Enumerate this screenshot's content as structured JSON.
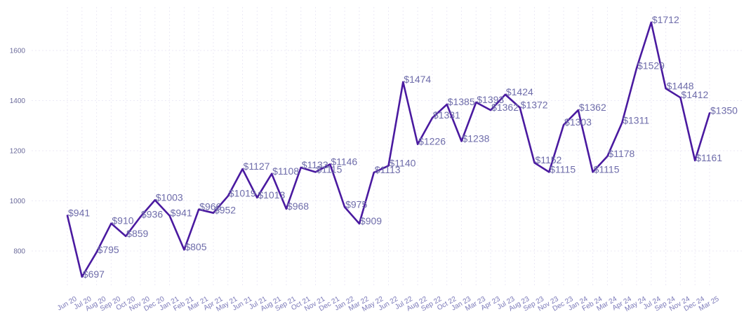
{
  "chart_data": {
    "type": "line",
    "x": [
      "Jun 20",
      "Jul 20",
      "Aug 20",
      "Sep 20",
      "Oct 20",
      "Nov 20",
      "Dec 20",
      "Jan 21",
      "Feb 21",
      "Mar 21",
      "Apr 21",
      "May 21",
      "Jun 21",
      "Jul 21",
      "Aug 21",
      "Sep 21",
      "Oct 21",
      "Nov 21",
      "Dec 21",
      "Jan 22",
      "Mar 22",
      "May 22",
      "Jun 22",
      "Jul 22",
      "Aug 22",
      "Sep 22",
      "Oct 22",
      "Jan 23",
      "Mar 23",
      "Apr 23",
      "Jul 23",
      "Aug 23",
      "Sep 23",
      "Nov 23",
      "Dec 23",
      "Jan 24",
      "Feb 24",
      "Mar 24",
      "Apr 24",
      "May 24",
      "Jul 24",
      "Sep 24",
      "Nov 24",
      "Dec 24",
      "Mar 25"
    ],
    "series": [
      {
        "values": [
          941,
          697,
          795,
          910,
          859,
          936,
          1003,
          941,
          805,
          966,
          952,
          1019,
          1127,
          1013,
          1108,
          968,
          1133,
          1115,
          1146,
          975,
          909,
          1113,
          1140,
          1474,
          1226,
          1331,
          1385,
          1238,
          1393,
          1362,
          1424,
          1372,
          1152,
          1115,
          1303,
          1362,
          1115,
          1178,
          1311,
          1529,
          1712,
          1448,
          1412,
          1161,
          1350
        ],
        "labels": [
          "$941",
          "$697",
          "$795",
          "$910",
          "$859",
          "$936",
          "$1003",
          "$941",
          "$805",
          "$966",
          "$952",
          "$1019",
          "$1127",
          "$1013",
          "$1108",
          "$968",
          "$1133",
          "$1115",
          "$1146",
          "$975",
          "$909",
          "$1113",
          "$1140",
          "$1474",
          "$1226",
          "$1331",
          "$1385",
          "$1238",
          "$1393",
          "$1362",
          "$1424",
          "$1372",
          "$1152",
          "$1115",
          "$1303",
          "$1362",
          "$1115",
          "$1178",
          "$1311",
          "$1529",
          "$1712",
          "$1448",
          "$1412",
          "$1161",
          "$1350"
        ]
      }
    ],
    "yticks": [
      800,
      1000,
      1200,
      1400,
      1600
    ],
    "ylim": [
      640,
      1760
    ],
    "grid": true,
    "line_color": "#4a1aa0",
    "label_color": "#6e6caa",
    "tick_color": "#7a78b8"
  }
}
